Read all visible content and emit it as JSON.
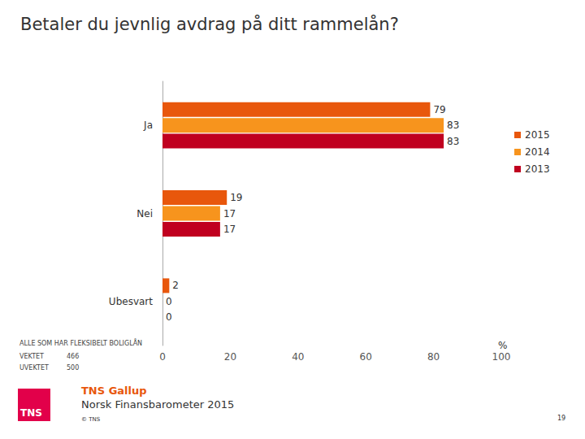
{
  "chart_data": {
    "type": "bar",
    "orientation": "horizontal",
    "title": "Betaler du jevnlig avdrag på ditt rammelån?",
    "categories": [
      "Ja",
      "Nei",
      "Ubesvart"
    ],
    "series": [
      {
        "name": "2015",
        "color": "#e8570c",
        "values": [
          79,
          19,
          2
        ]
      },
      {
        "name": "2014",
        "color": "#f7941d",
        "values": [
          83,
          17,
          0
        ]
      },
      {
        "name": "2013",
        "color": "#c0001f",
        "values": [
          83,
          17,
          0
        ]
      }
    ],
    "xlim": [
      0,
      100
    ],
    "xticks": [
      0,
      20,
      40,
      60,
      80,
      100
    ],
    "x_label": "%",
    "data_labels": true,
    "grid": false,
    "legend": "right",
    "base_note": "ALLE SOM HAR FLEKSIBELT BOLIGLÅN",
    "base": [
      {
        "label": "VEKTET",
        "value": 466
      },
      {
        "label": "UVEKTET",
        "value": 500
      }
    ],
    "source": "TNS Gallup",
    "source_title": "Norsk Finansbarometer 2015",
    "copyright": "© TNS",
    "page": 19,
    "logo": "TNS"
  }
}
